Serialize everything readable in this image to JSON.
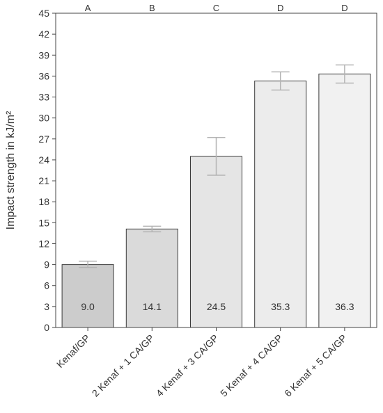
{
  "chart_data": {
    "type": "bar",
    "ylabel": "Impact strength in kJ/m²",
    "ylim": [
      0,
      45
    ],
    "yticks": [
      0,
      3,
      6,
      9,
      12,
      15,
      18,
      21,
      24,
      27,
      30,
      33,
      36,
      39,
      42,
      45
    ],
    "categories": [
      "Kenaf/GP",
      "2 Kenaf + 1 CA/GP",
      "4 Kenaf + 3 CA/GP",
      "5 Kenaf + 4 CA/GP",
      "6 Kenaf + 5 CA/GP"
    ],
    "values": [
      9.0,
      14.1,
      24.5,
      35.3,
      36.3
    ],
    "value_labels": [
      "9.0",
      "14.1",
      "24.5",
      "35.3",
      "36.3"
    ],
    "error_low": [
      8.6,
      13.7,
      21.8,
      34.0,
      35.0
    ],
    "error_high": [
      9.5,
      14.5,
      27.2,
      36.6,
      37.6
    ],
    "group_letters": [
      "A",
      "B",
      "C",
      "D",
      "D"
    ],
    "bar_colors": [
      "#cccccc",
      "#dadada",
      "#e5e5e5",
      "#ececec",
      "#f1f1f1"
    ],
    "error_bar_color": "#b4b4b4",
    "grid": false,
    "legend": "none"
  }
}
